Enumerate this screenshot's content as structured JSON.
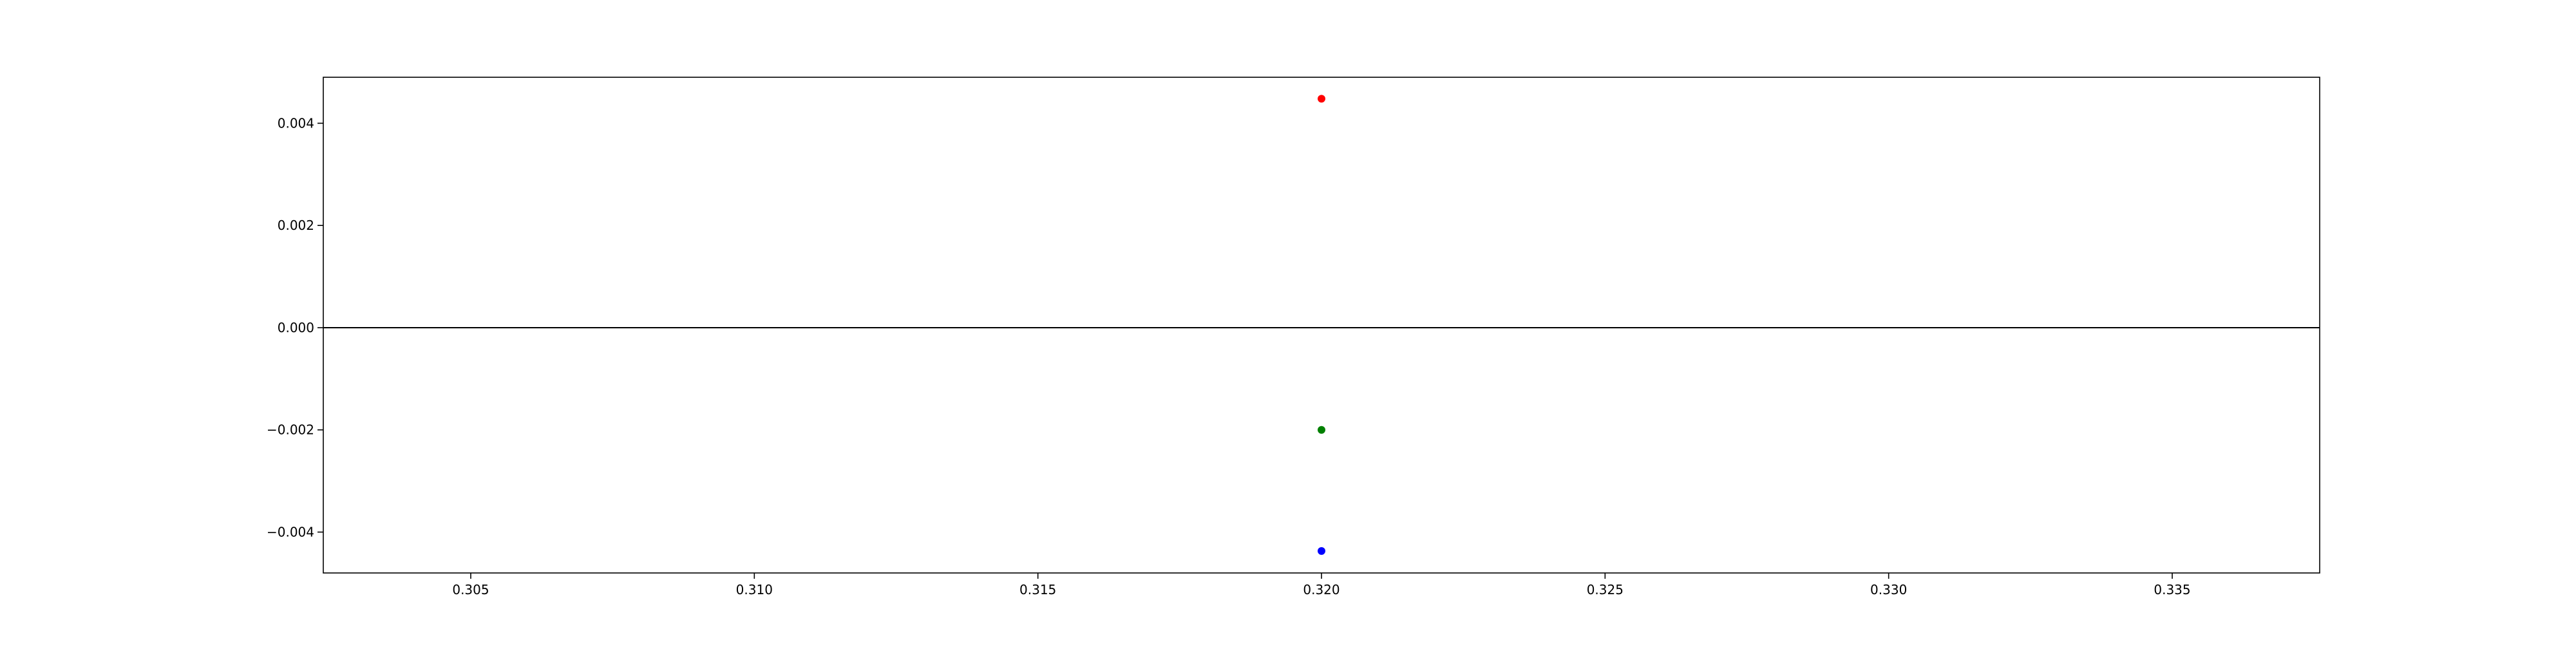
{
  "chart_data": {
    "type": "scatter",
    "title": "",
    "xlabel": "",
    "ylabel": "",
    "xlim": [
      0.3024,
      0.3376
    ],
    "ylim": [
      -0.0048,
      0.0049
    ],
    "x_ticks": [
      {
        "value": 0.305,
        "label": "0.305"
      },
      {
        "value": 0.31,
        "label": "0.310"
      },
      {
        "value": 0.315,
        "label": "0.315"
      },
      {
        "value": 0.32,
        "label": "0.320"
      },
      {
        "value": 0.325,
        "label": "0.325"
      },
      {
        "value": 0.33,
        "label": "0.330"
      },
      {
        "value": 0.335,
        "label": "0.335"
      }
    ],
    "y_ticks": [
      {
        "value": -0.004,
        "label": "−0.004"
      },
      {
        "value": -0.002,
        "label": "−0.002"
      },
      {
        "value": 0.0,
        "label": "0.000"
      },
      {
        "value": 0.002,
        "label": "0.002"
      },
      {
        "value": 0.004,
        "label": "0.004"
      }
    ],
    "reference_line": {
      "y": 0.0,
      "color": "#000000"
    },
    "grid": false,
    "legend": "none",
    "series": [
      {
        "color": "#ff0000",
        "points": [
          {
            "x": 0.32,
            "y": 0.00448
          }
        ]
      },
      {
        "color": "#008000",
        "points": [
          {
            "x": 0.32,
            "y": -0.002
          }
        ]
      },
      {
        "color": "#0000ff",
        "points": [
          {
            "x": 0.32,
            "y": -0.00437
          }
        ]
      }
    ]
  }
}
